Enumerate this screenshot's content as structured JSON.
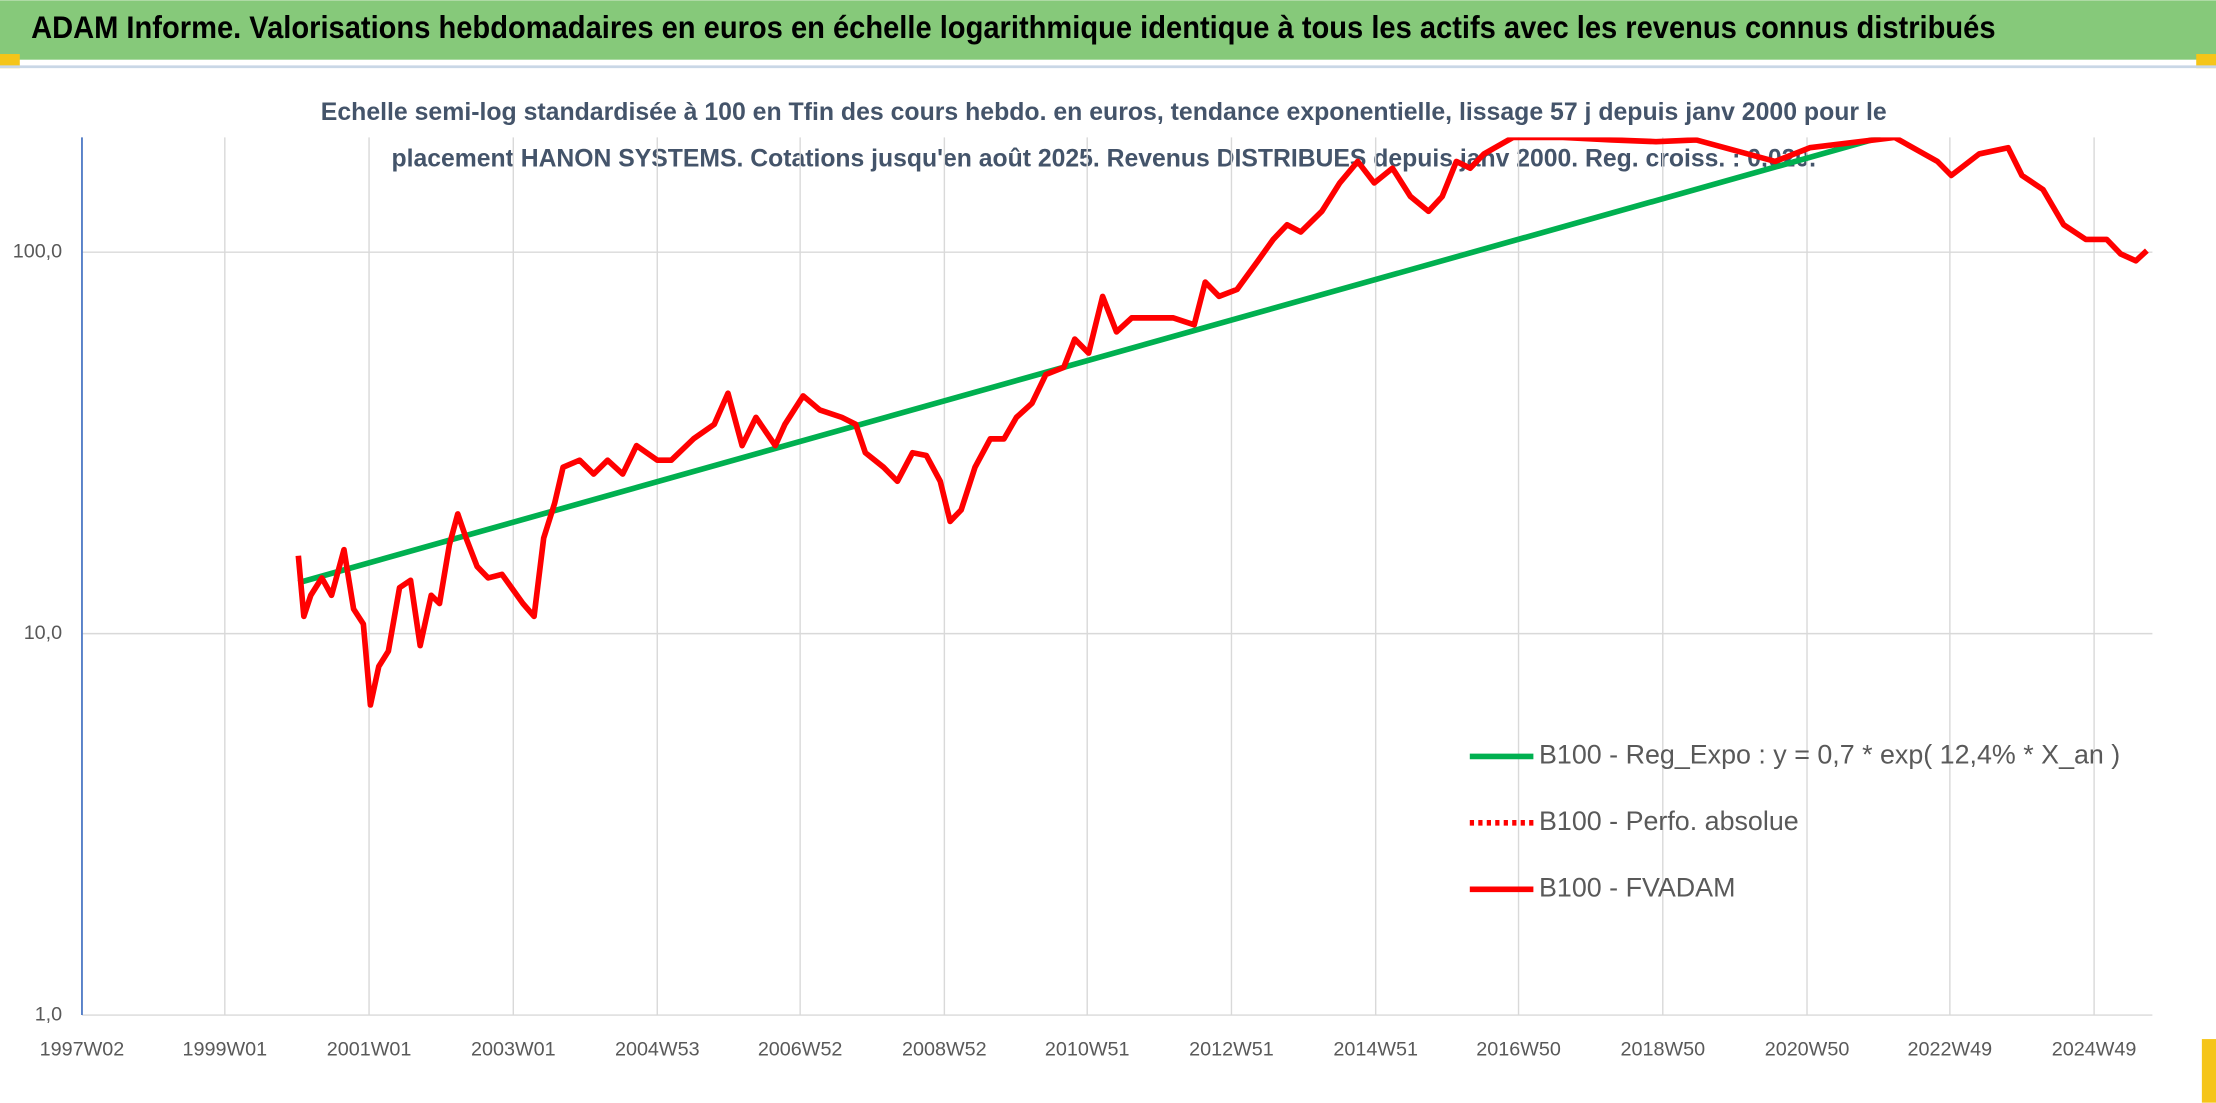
{
  "header": {
    "title": "ADAM Informe. Valorisations hebdomadaires en euros en échelle logarithmique identique à tous les actifs avec les revenus connus distribués"
  },
  "chart_data": {
    "type": "line",
    "title": [
      "Echelle semi-log standardisée à 100 en Tfin des cours hebdo. en euros, tendance exponentielle, lissage 57 j depuis janv 2000 pour le",
      "placement HANON SYSTEMS. Cotations jusqu'en août 2025. Revenus DISTRIBUES depuis janv 2000. Reg. croiss. : 0,020."
    ],
    "log_scale": true,
    "grid": true,
    "legend": "right",
    "xlim": [
      "1997W02",
      "2025W39"
    ],
    "xticks": [
      "1997W02",
      "1999W01",
      "2001W01",
      "2003W01",
      "2004W53",
      "2006W52",
      "2008W52",
      "2010W51",
      "2012W51",
      "2014W51",
      "2016W50",
      "2018W50",
      "2020W50",
      "2022W49",
      "2024W49"
    ],
    "ylim": [
      1,
      200
    ],
    "yticks": [
      {
        "value": 1,
        "label": "1,0"
      },
      {
        "value": 10,
        "label": "10,0"
      },
      {
        "value": 100,
        "label": "100,0"
      }
    ],
    "series": [
      {
        "name": "B100 - Reg_Expo : y = 0,7 * exp( 12,4% *  X_an )",
        "color": "#00b050",
        "style": "solid",
        "x": [
          "2000W02",
          "2021W51"
        ],
        "values": [
          13.6,
          200
        ]
      },
      {
        "name": "B100 - Perfo. absolue",
        "color": "#ff0000",
        "style": "dotted",
        "x": [],
        "values": []
      },
      {
        "name": "B100 - FVADAM",
        "color": "#ff0000",
        "style": "solid",
        "x": [
          "2000W02",
          "2000W06",
          "2000W11",
          "2000W19",
          "2000W26",
          "2000W35",
          "2000W42",
          "2000W49",
          "2001W02",
          "2001W08",
          "2001W15",
          "2001W23",
          "2001W31",
          "2001W38",
          "2001W46",
          "2001W52",
          "2002W07",
          "2002W13",
          "2002W19",
          "2002W27",
          "2002W35",
          "2002W45",
          "2003W08",
          "2003W16",
          "2003W23",
          "2003W31",
          "2003W37",
          "2003W49",
          "2004W07",
          "2004W17",
          "2004W28",
          "2004W38",
          "2004W53",
          "2005W11",
          "2005W27",
          "2005W42",
          "2005W52",
          "2006W10",
          "2006W20",
          "2006W34",
          "2006W41",
          "2007W02",
          "2007W14",
          "2007W30",
          "2007W40",
          "2007W47",
          "2008W08",
          "2008W18",
          "2008W29",
          "2008W39",
          "2008W49",
          "2009W04",
          "2009W12",
          "2009W22",
          "2009W33",
          "2009W43",
          "2009W52",
          "2010W11",
          "2010W21",
          "2010W34",
          "2010W42",
          "2010W52",
          "2011W10",
          "2011W20",
          "2011W31",
          "2011W46",
          "2012W09",
          "2012W24",
          "2012W32",
          "2012W42",
          "2013W03",
          "2013W18",
          "2013W29",
          "2013W39",
          "2013W49",
          "2014W12",
          "2014W25",
          "2014W38",
          "2014W50",
          "2015W11",
          "2015W24",
          "2015W37",
          "2015W47",
          "2016W05",
          "2016W15",
          "2016W25",
          "2016W46",
          "2017W30",
          "2018W13",
          "2018W45",
          "2019W22",
          "2020W27",
          "2020W52",
          "2022W09",
          "2022W40",
          "2022W50",
          "2023W18",
          "2023W39",
          "2023W49",
          "2024W12",
          "2024W27",
          "2024W43",
          "2025W06",
          "2025W16",
          "2025W27",
          "2025W35"
        ],
        "values": [
          16.0,
          11.1,
          12.6,
          14.0,
          12.6,
          16.6,
          11.6,
          10.6,
          6.5,
          8.2,
          9.0,
          13.2,
          13.8,
          9.3,
          12.6,
          12.0,
          17.1,
          20.6,
          17.8,
          15.0,
          14.0,
          14.3,
          12.0,
          11.1,
          17.8,
          22.0,
          27.3,
          28.5,
          26.2,
          28.5,
          26.2,
          31.1,
          28.5,
          28.5,
          32.4,
          35.4,
          42.7,
          31.1,
          36.9,
          31.1,
          35.4,
          42.0,
          38.6,
          36.9,
          35.4,
          29.8,
          27.3,
          25.1,
          29.8,
          29.3,
          25.1,
          19.7,
          21.1,
          27.3,
          32.4,
          32.4,
          36.9,
          40.2,
          47.8,
          49.9,
          59.2,
          54.4,
          76.6,
          61.8,
          67.3,
          67.3,
          67.3,
          64.5,
          83.5,
          76.6,
          79.9,
          95.0,
          108,
          118,
          113,
          128,
          152,
          173,
          152,
          166,
          140,
          128,
          140,
          173,
          166,
          181,
          200,
          200,
          197,
          195,
          197,
          173,
          188,
          200,
          173,
          159,
          181,
          188,
          159,
          146,
          118,
          108,
          108,
          99,
          95,
          101
        ]
      }
    ]
  }
}
